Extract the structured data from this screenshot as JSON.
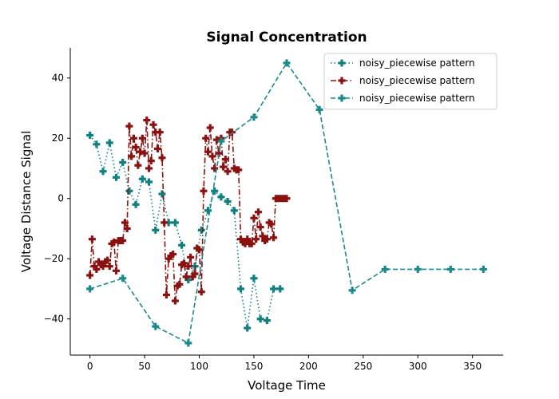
{
  "chart_data": {
    "type": "line",
    "title": "Signal Concentration",
    "xlabel": "Voltage Time",
    "ylabel": "Voltage Distance Signal",
    "xlim": [
      -18,
      378
    ],
    "ylim": [
      -52,
      50
    ],
    "xticks": [
      0,
      50,
      100,
      150,
      200,
      250,
      300,
      350
    ],
    "yticks": [
      -40,
      -20,
      0,
      20,
      40
    ],
    "grid": false,
    "legend_position": "top-right",
    "series": [
      {
        "name": "noisy_piecewise pattern",
        "color": "#0f8080",
        "linestyle": "dotted",
        "x": [
          0,
          6,
          12,
          18,
          24,
          30,
          36,
          42,
          48,
          54,
          60,
          66,
          72,
          78,
          84,
          90,
          96,
          102,
          108,
          114,
          120,
          126,
          132,
          138,
          144,
          150,
          156,
          162,
          168,
          174
        ],
        "y": [
          21,
          18,
          9,
          18.5,
          7,
          12,
          2.5,
          -2,
          6.5,
          5.5,
          -10.5,
          1.5,
          -8,
          -8,
          -15.5,
          -27,
          -22.5,
          -10.5,
          -4,
          2.5,
          0.5,
          -1,
          -4,
          -30,
          -43,
          -26.5,
          -40,
          -40.5,
          -30,
          -30
        ]
      },
      {
        "name": "noisy_piecewise pattern",
        "color": "#8b1010",
        "linestyle": "dashdot",
        "x": [
          0,
          2,
          4,
          6,
          8,
          10,
          12,
          14,
          16,
          18,
          20,
          22,
          24,
          26,
          28,
          30,
          32,
          34,
          36,
          38,
          40,
          42,
          44,
          46,
          48,
          50,
          52,
          54,
          56,
          58,
          60,
          62,
          64,
          66,
          68,
          70,
          72,
          74,
          76,
          78,
          80,
          82,
          84,
          86,
          88,
          90,
          92,
          94,
          96,
          98,
          100,
          102,
          104,
          106,
          108,
          110,
          112,
          114,
          116,
          118,
          120,
          122,
          124,
          126,
          128,
          130,
          132,
          134,
          136,
          138,
          140,
          142,
          144,
          146,
          148,
          150,
          152,
          154,
          156,
          158,
          160,
          162,
          164,
          166,
          168,
          170,
          172,
          174,
          176,
          178,
          180
        ],
        "y": [
          -25.5,
          -13.5,
          -22.5,
          -23.5,
          -21,
          -22,
          -22.5,
          -21,
          -20.5,
          -22.5,
          -15,
          -14.5,
          -24,
          -14,
          -14,
          -14,
          -8,
          -10,
          24,
          14,
          20,
          17,
          11,
          15.5,
          20,
          15,
          26,
          10,
          12.5,
          24.5,
          22,
          16.5,
          22,
          13.5,
          -8,
          -32,
          -20,
          -19,
          -18.5,
          -34,
          -29,
          -28.5,
          -22,
          -21.5,
          -26,
          -22.5,
          -19.5,
          -26,
          -25,
          -16.5,
          -17,
          -31,
          2.5,
          20,
          15.5,
          23.5,
          14,
          10,
          19.5,
          15,
          20,
          10.5,
          13,
          9,
          22,
          22,
          10,
          9.5,
          9.5,
          -13.5,
          -14.5,
          -15,
          -13.5,
          -15,
          -15,
          -6.5,
          -13.5,
          -4.5,
          -9.5,
          -12.5,
          -14,
          -13.5,
          -8,
          -8.5,
          -13,
          0,
          0,
          0,
          0,
          0,
          0
        ]
      },
      {
        "name": "noisy_piecewise pattern",
        "color": "#1a8a8a",
        "linestyle": "dashed",
        "x": [
          0,
          30,
          60,
          90,
          120,
          150,
          180,
          210,
          240,
          270,
          300,
          330,
          360
        ],
        "y": [
          -30,
          -26.5,
          -42.5,
          -48,
          19,
          27,
          45,
          29.5,
          -30.5,
          -23.5,
          -23.5,
          -23.5,
          -23.5
        ]
      }
    ]
  }
}
